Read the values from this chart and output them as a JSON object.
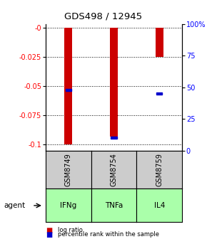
{
  "title": "GDS498 / 12945",
  "samples": [
    "GSM8749",
    "GSM8754",
    "GSM8759"
  ],
  "agents": [
    "IFNg",
    "TNFa",
    "IL4"
  ],
  "log_ratios": [
    -0.1,
    -0.093,
    -0.025
  ],
  "percentile_ranks": [
    0.48,
    0.1,
    0.45
  ],
  "ylim_left": [
    -0.105,
    0.003
  ],
  "yticks_left": [
    0,
    -0.025,
    -0.05,
    -0.075,
    -0.1
  ],
  "ytick_labels_left": [
    "-0",
    "-0.025",
    "-0.05",
    "-0.075",
    "-0.1"
  ],
  "ytick_labels_right": [
    "100%",
    "75",
    "50",
    "25",
    "0"
  ],
  "bar_color": "#cc0000",
  "marker_color": "#0000cc",
  "agent_green": "#aaffaa",
  "sample_box_color": "#cccccc",
  "legend_log_ratio": "log ratio",
  "legend_percentile": "percentile rank within the sample",
  "bar_width": 0.18,
  "agent_label": "agent"
}
